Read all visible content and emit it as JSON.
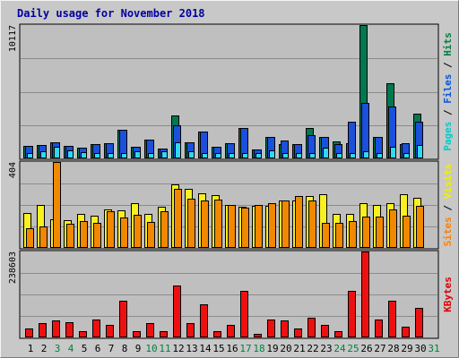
{
  "chart_data": {
    "type": "bar",
    "title": "Daily usage for November 2018",
    "categories": [
      "1",
      "2",
      "3",
      "4",
      "5",
      "6",
      "7",
      "8",
      "9",
      "10",
      "11",
      "12",
      "13",
      "14",
      "15",
      "16",
      "17",
      "18",
      "19",
      "20",
      "21",
      "22",
      "23",
      "24",
      "25",
      "26",
      "27",
      "28",
      "29",
      "30",
      "31"
    ],
    "weekend_days": [
      "3",
      "4",
      "10",
      "11",
      "17",
      "18",
      "24",
      "25",
      "31"
    ],
    "panels": [
      {
        "id": "hits",
        "ymax_label": "10117",
        "ymax": 10117,
        "right_labels": [
          {
            "text": "Pages",
            "color": "#00cccc"
          },
          {
            "text": " / ",
            "color": "#000000"
          },
          {
            "text": "Files",
            "color": "#0055dd"
          },
          {
            "text": " / ",
            "color": "#000000"
          },
          {
            "text": "Hits",
            "color": "#008040"
          }
        ],
        "series": [
          {
            "name": "Hits",
            "color": "#007850",
            "values": [
              938,
              1015,
              1226,
              938,
              791,
              1069,
              1162,
              2160,
              883,
              1418,
              744,
              3241,
              1248,
              2027,
              883,
              1171,
              2339,
              698,
              1652,
              1116,
              1069,
              2307,
              1652,
              1302,
              1171,
              10117,
              1605,
              5712,
              1116,
              3374,
              0
            ]
          },
          {
            "name": "Files",
            "color": "#1a50dc",
            "values": [
              938,
              1015,
              1226,
              938,
              791,
              1069,
              1162,
              2160,
              883,
              1418,
              744,
              2493,
              1248,
              2027,
              883,
              1171,
              2339,
              698,
              1652,
              1356,
              1069,
              1785,
              1652,
              1069,
              2773,
              4182,
              1605,
              3933,
              1171,
              2773,
              0
            ]
          },
          {
            "name": "Pages",
            "color": "#30d8f0",
            "values": [
              433,
              538,
              863,
              598,
              473,
              433,
              433,
              433,
              538,
              433,
              538,
              1248,
              538,
              433,
              433,
              433,
              433,
              433,
              598,
              433,
              433,
              433,
              791,
              433,
              433,
              538,
              433,
              863,
              433,
              1015,
              0
            ]
          }
        ]
      },
      {
        "id": "visits",
        "ymax_label": "404",
        "ymax": 404,
        "right_labels": [
          {
            "text": "Sites",
            "color": "#ff8000"
          },
          {
            "text": " / ",
            "color": "#000000"
          },
          {
            "text": "Visits",
            "color": "#f0f000"
          }
        ],
        "series": [
          {
            "name": "Visits",
            "color": "#f8f020",
            "values": [
              164,
              204,
              136,
              131,
              161,
              151,
              180,
              178,
              211,
              161,
              192,
              300,
              278,
              257,
              247,
              203,
              192,
              196,
              196,
              223,
              222,
              244,
              254,
              161,
              159,
              212,
              203,
              211,
              254,
              235,
              0
            ]
          },
          {
            "name": "Sites",
            "color": "#f08800",
            "values": [
              91,
              103,
              404,
              113,
              126,
              117,
              171,
              144,
              156,
              123,
              172,
              276,
              233,
              222,
              227,
              200,
              191,
              200,
              211,
              222,
              242,
              224,
              119,
              118,
              127,
              148,
              148,
              179,
              152,
              196,
              0
            ]
          }
        ]
      },
      {
        "id": "kbytes",
        "ymax_label": "238603",
        "ymax": 238603,
        "right_labels": [
          {
            "text": "KBytes",
            "color": "#e00000"
          }
        ],
        "series": [
          {
            "name": "KBytes",
            "color": "#ee1010",
            "values": [
              25000,
              40000,
              47000,
              43000,
              17000,
              50000,
              34000,
              102000,
              17000,
              40000,
              17000,
              145000,
              40000,
              93000,
              17000,
              34000,
              130000,
              10000,
              50000,
              47000,
              25000,
              55000,
              34000,
              17000,
              130000,
              238603,
              50000,
              102000,
              31000,
              81000,
              0
            ]
          }
        ]
      }
    ]
  }
}
